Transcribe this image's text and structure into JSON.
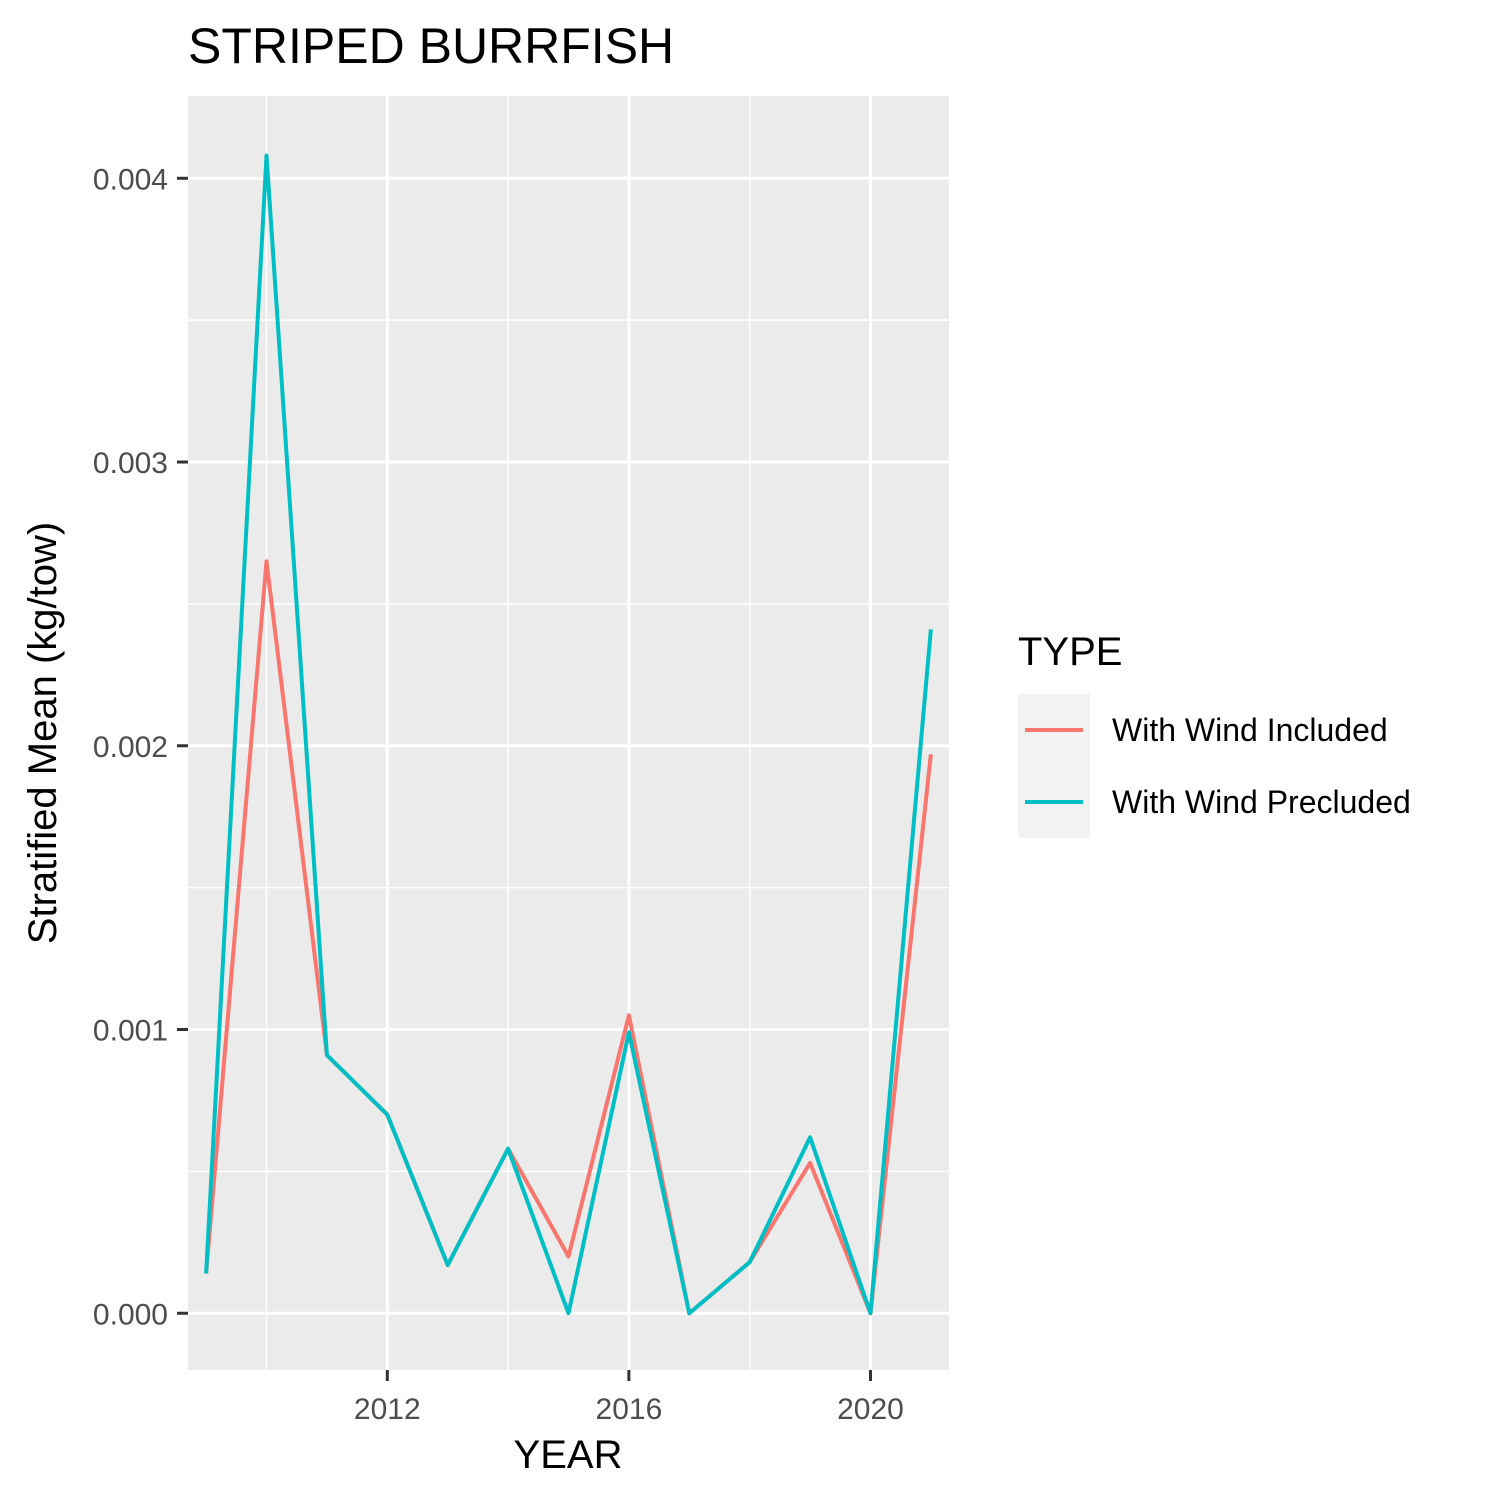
{
  "chart_data": {
    "type": "line",
    "title": "STRIPED BURRFISH",
    "xlabel": "YEAR",
    "ylabel": "Stratified Mean (kg/tow)",
    "xlim": [
      2008.7,
      2021.3
    ],
    "ylim": [
      -0.0002,
      0.00429
    ],
    "x_ticks": [
      2012,
      2016,
      2020
    ],
    "x_tick_labels": [
      "2012",
      "2016",
      "2020"
    ],
    "x_minor_ticks": [
      2010,
      2014,
      2018
    ],
    "y_ticks": [
      0,
      0.001,
      0.002,
      0.003,
      0.004
    ],
    "y_tick_labels": [
      "0.000",
      "0.001",
      "0.002",
      "0.003",
      "0.004"
    ],
    "y_minor_ticks": [
      0.0005,
      0.0015,
      0.0025,
      0.0035
    ],
    "grid": true,
    "legend": {
      "title": "TYPE",
      "position": "right"
    },
    "x": [
      2009,
      2010,
      2011,
      2012,
      2013,
      2014,
      2015,
      2016,
      2017,
      2018,
      2019,
      2020,
      2021
    ],
    "series": [
      {
        "name": "With Wind Included",
        "color": "#F8766D",
        "values": [
          0.00014,
          0.00265,
          0.00091,
          0.0007,
          0.00017,
          0.00058,
          0.0002,
          0.00105,
          0.0,
          0.00018,
          0.00053,
          0.0,
          0.00197
        ]
      },
      {
        "name": "With Wind Precluded",
        "color": "#00BFC4",
        "values": [
          0.00014,
          0.00408,
          0.00091,
          0.0007,
          0.00017,
          0.00058,
          0.0,
          0.00099,
          0.0,
          0.00018,
          0.00062,
          0.0,
          0.00241
        ]
      }
    ]
  },
  "colors": {
    "panel_background": "#EBEBEB",
    "grid": "#FFFFFF",
    "legend_key_background": "#F2F2F2",
    "tick_text": "#4D4D4D"
  }
}
